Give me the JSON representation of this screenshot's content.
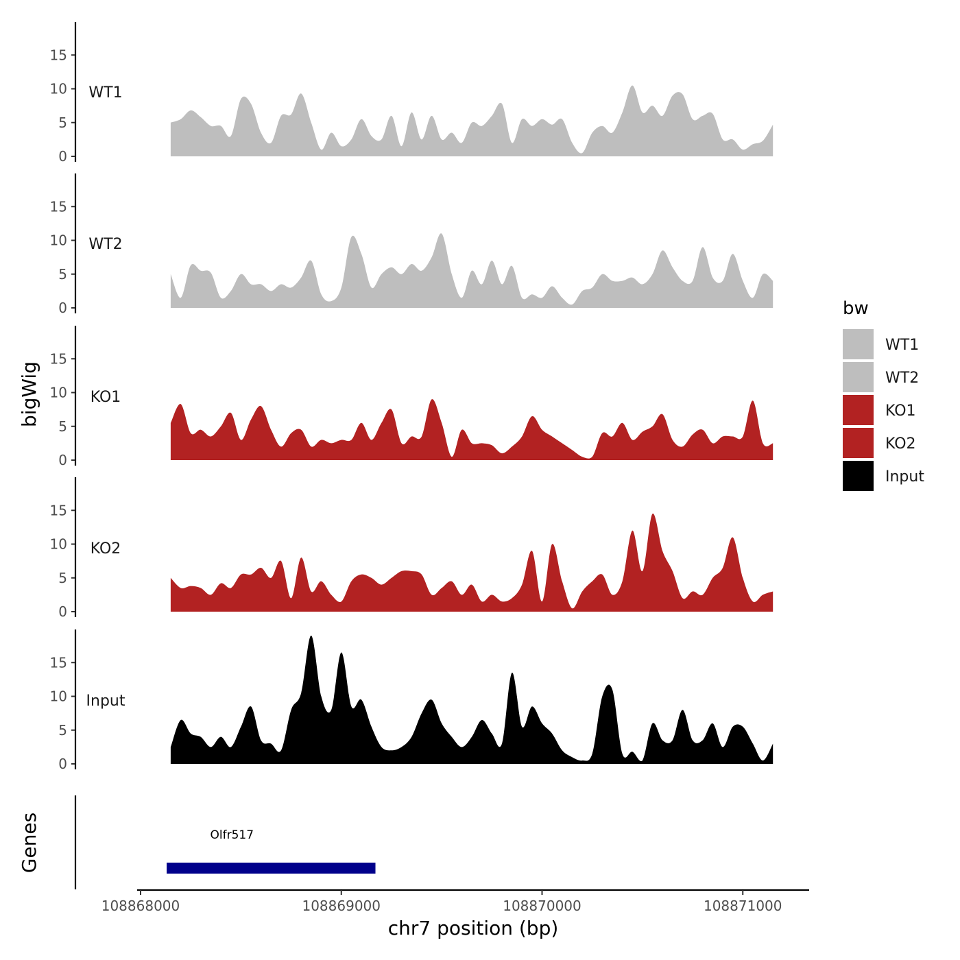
{
  "chart_data": {
    "type": "area",
    "title": "",
    "xlabel": "chr7 position (bp)",
    "ylabel": "bigWig",
    "genes_label": "Genes",
    "xlim": [
      108867980,
      108871330
    ],
    "ylim": [
      0,
      20
    ],
    "x_ticks": [
      108868000,
      108869000,
      108870000,
      108871000
    ],
    "x_tick_labels": [
      "108868000",
      "108869000",
      "108870000",
      "108871000"
    ],
    "y_ticks": [
      0,
      5,
      10,
      15
    ],
    "y_tick_labels": [
      "0",
      "5",
      "10",
      "15"
    ],
    "x": [
      108868150,
      108868200,
      108868250,
      108868300,
      108868350,
      108868400,
      108868450,
      108868500,
      108868550,
      108868600,
      108868650,
      108868700,
      108868750,
      108868800,
      108868850,
      108868900,
      108868950,
      108869000,
      108869050,
      108869100,
      108869150,
      108869200,
      108869250,
      108869300,
      108869350,
      108869400,
      108869450,
      108869500,
      108869550,
      108869600,
      108869650,
      108869700,
      108869750,
      108869800,
      108869850,
      108869900,
      108869950,
      108870000,
      108870050,
      108870100,
      108870150,
      108870200,
      108870250,
      108870300,
      108870350,
      108870400,
      108870450,
      108870500,
      108870550,
      108870600,
      108870650,
      108870700,
      108870750,
      108870800,
      108870850,
      108870900,
      108870950,
      108871000,
      108871050,
      108871100,
      108871150
    ],
    "series": [
      {
        "name": "WT1",
        "color": "#bebebe",
        "values": [
          5,
          5.5,
          6.8,
          5.8,
          4.5,
          4.5,
          3,
          8.5,
          7.8,
          3.5,
          2,
          6,
          6.2,
          9.3,
          5,
          1,
          3.5,
          1.5,
          2.5,
          5.5,
          3,
          2.5,
          6,
          1.5,
          6.5,
          2.5,
          6,
          2.5,
          3.5,
          2,
          5,
          4.5,
          6,
          7.8,
          2,
          5.5,
          4.5,
          5.5,
          4.7,
          5.5,
          2,
          0.5,
          3.5,
          4.5,
          3.5,
          6.5,
          10.5,
          6.5,
          7.5,
          6,
          9,
          9.2,
          5.5,
          6,
          6.3,
          2.5,
          2.5,
          1,
          1.8,
          2.3,
          4.7
        ]
      },
      {
        "name": "WT2",
        "color": "#bebebe",
        "values": [
          5,
          1.5,
          6.3,
          5.5,
          5.2,
          1.5,
          2.5,
          5,
          3.5,
          3.5,
          2.5,
          3.5,
          3,
          4.5,
          7,
          2,
          1,
          3,
          10.5,
          8,
          3,
          5,
          6,
          5,
          6.5,
          5.5,
          7.5,
          11,
          5,
          1.5,
          5.5,
          3.5,
          7,
          3.5,
          6.2,
          1.5,
          2,
          1.5,
          3.2,
          1.5,
          0.5,
          2.5,
          3,
          5,
          4,
          4,
          4.5,
          3.5,
          5,
          8.5,
          6,
          4,
          4,
          9,
          4.5,
          4,
          8,
          4,
          1.5,
          5,
          4
        ]
      },
      {
        "name": "KO1",
        "color": "#b22222",
        "values": [
          5.5,
          8.3,
          4,
          4.5,
          3.5,
          5,
          7,
          3,
          6,
          8,
          4.5,
          2,
          4,
          4.5,
          2,
          3,
          2.5,
          3,
          3,
          5.5,
          3,
          5.5,
          7.5,
          2.5,
          3.5,
          3.5,
          9,
          5.5,
          0.5,
          4.5,
          2.5,
          2.5,
          2.2,
          1,
          2,
          3.5,
          6.5,
          4.5,
          3.5,
          2.5,
          1.5,
          0.5,
          0.5,
          4,
          3.5,
          5.5,
          3,
          4.2,
          5,
          6.8,
          3,
          2,
          3.8,
          4.5,
          2.5,
          3.5,
          3.5,
          3.5,
          8.8,
          2.5,
          2.5
        ]
      },
      {
        "name": "KO2",
        "color": "#b22222",
        "values": [
          5,
          3.5,
          3.8,
          3.5,
          2.5,
          4.2,
          3.5,
          5.5,
          5.5,
          6.5,
          5,
          7.5,
          2,
          8,
          3,
          4.5,
          2.5,
          1.5,
          4.5,
          5.5,
          5,
          4,
          5,
          6,
          6,
          5.5,
          2.5,
          3.5,
          4.5,
          2.5,
          4,
          1.5,
          2.5,
          1.5,
          2,
          4,
          9,
          1.5,
          10,
          4.5,
          0.5,
          3,
          4.5,
          5.5,
          2.5,
          4.5,
          12,
          6,
          14.5,
          9,
          6,
          2,
          3,
          2.5,
          5,
          6.5,
          11,
          5,
          1.5,
          2.5,
          3
        ]
      },
      {
        "name": "Input",
        "color": "#000000",
        "values": [
          2.5,
          6.5,
          4.5,
          4,
          2.5,
          4,
          2.5,
          5.5,
          8.5,
          3.5,
          3,
          2,
          8,
          10.5,
          19,
          10,
          8,
          16.5,
          8.5,
          9.5,
          5.5,
          2.5,
          2,
          2.5,
          4,
          7.5,
          9.5,
          6,
          4,
          2.5,
          4,
          6.5,
          4.5,
          3,
          13.5,
          5.5,
          8.5,
          6,
          4.5,
          2,
          1,
          0.5,
          1.5,
          10,
          11,
          1.5,
          1.8,
          0.5,
          6,
          3.5,
          3.5,
          8,
          3.5,
          3.5,
          6,
          2.5,
          5.5,
          5.5,
          3,
          0.5,
          3
        ]
      }
    ],
    "genes": [
      {
        "name": "Olfr517",
        "start": 108868130,
        "end": 108869170,
        "color": "#00008b"
      }
    ],
    "legend": {
      "title": "bw",
      "position": "right",
      "entries": [
        {
          "label": "WT1",
          "color": "#bebebe"
        },
        {
          "label": "WT2",
          "color": "#bebebe"
        },
        {
          "label": "KO1",
          "color": "#b22222"
        },
        {
          "label": "KO2",
          "color": "#b22222"
        },
        {
          "label": "Input",
          "color": "#000000"
        }
      ]
    }
  }
}
